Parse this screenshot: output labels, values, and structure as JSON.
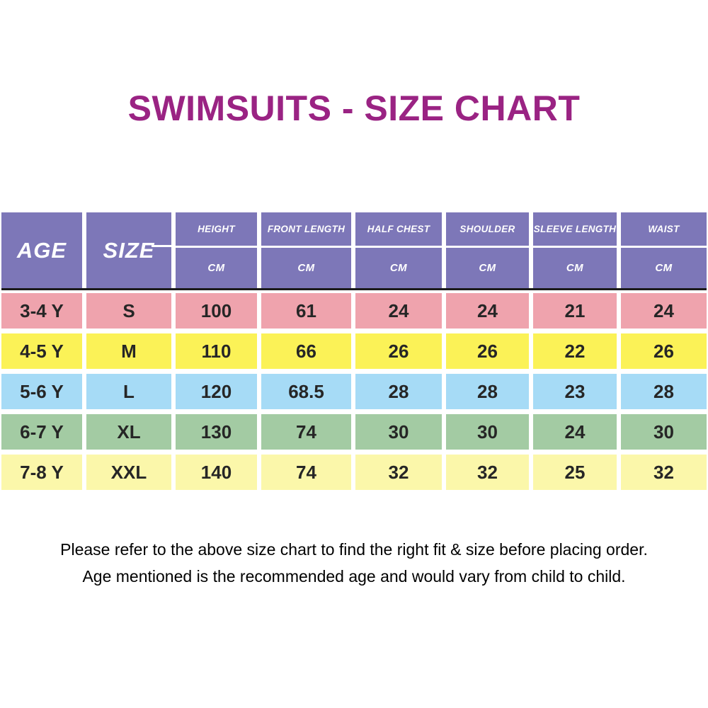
{
  "title": "SWIMSUITS - SIZE CHART",
  "colors": {
    "title_text": "#9a2383",
    "header_bg": "#7d77b8",
    "header_text": "#ffffff",
    "header_underline": "#1b1b1b",
    "cell_text": "#262626",
    "row_pink": "#efa3ad",
    "row_yellow": "#fbf257",
    "row_blue": "#a6dbf6",
    "row_green": "#a3cba3",
    "row_pale_yellow": "#fbf7aa"
  },
  "table": {
    "corner": [
      {
        "label": "AGE"
      },
      {
        "label": "SIZE"
      }
    ],
    "columns": [
      {
        "label": "HEIGHT",
        "unit": "CM"
      },
      {
        "label": "FRONT LENGTH",
        "unit": "CM"
      },
      {
        "label": "HALF CHEST",
        "unit": "CM"
      },
      {
        "label": "SHOULDER",
        "unit": "CM"
      },
      {
        "label": "SLEEVE LENGTH",
        "unit": "CM"
      },
      {
        "label": "WAIST",
        "unit": "CM"
      }
    ],
    "rows": [
      {
        "age": "3-4 Y",
        "size": "S",
        "values": [
          "100",
          "61",
          "24",
          "24",
          "21",
          "24"
        ],
        "color": "#efa3ad"
      },
      {
        "age": "4-5 Y",
        "size": "M",
        "values": [
          "110",
          "66",
          "26",
          "26",
          "22",
          "26"
        ],
        "color": "#fbf257"
      },
      {
        "age": "5-6 Y",
        "size": "L",
        "values": [
          "120",
          "68.5",
          "28",
          "28",
          "23",
          "28"
        ],
        "color": "#a6dbf6"
      },
      {
        "age": "6-7 Y",
        "size": "XL",
        "values": [
          "130",
          "74",
          "30",
          "30",
          "24",
          "30"
        ],
        "color": "#a3cba3"
      },
      {
        "age": "7-8 Y",
        "size": "XXL",
        "values": [
          "140",
          "74",
          "32",
          "32",
          "25",
          "32"
        ],
        "color": "#fbf7aa"
      }
    ]
  },
  "footer": {
    "line1": "Please refer to the above size chart to find the right fit & size before placing order.",
    "line2": "Age mentioned is the recommended age and would vary from child to child."
  },
  "chart_data": {
    "type": "table",
    "title": "SWIMSUITS - SIZE CHART",
    "columns": [
      "AGE",
      "SIZE",
      "HEIGHT CM",
      "FRONT LENGTH CM",
      "HALF CHEST CM",
      "SHOULDER CM",
      "SLEEVE LENGTH CM",
      "WAIST CM"
    ],
    "rows": [
      [
        "3-4 Y",
        "S",
        100,
        61,
        24,
        24,
        21,
        24
      ],
      [
        "4-5 Y",
        "M",
        110,
        66,
        26,
        26,
        22,
        26
      ],
      [
        "5-6 Y",
        "L",
        120,
        68.5,
        28,
        28,
        23,
        28
      ],
      [
        "6-7 Y",
        "XL",
        130,
        74,
        30,
        30,
        24,
        30
      ],
      [
        "7-8 Y",
        "XXL",
        140,
        74,
        32,
        32,
        25,
        32
      ]
    ]
  }
}
